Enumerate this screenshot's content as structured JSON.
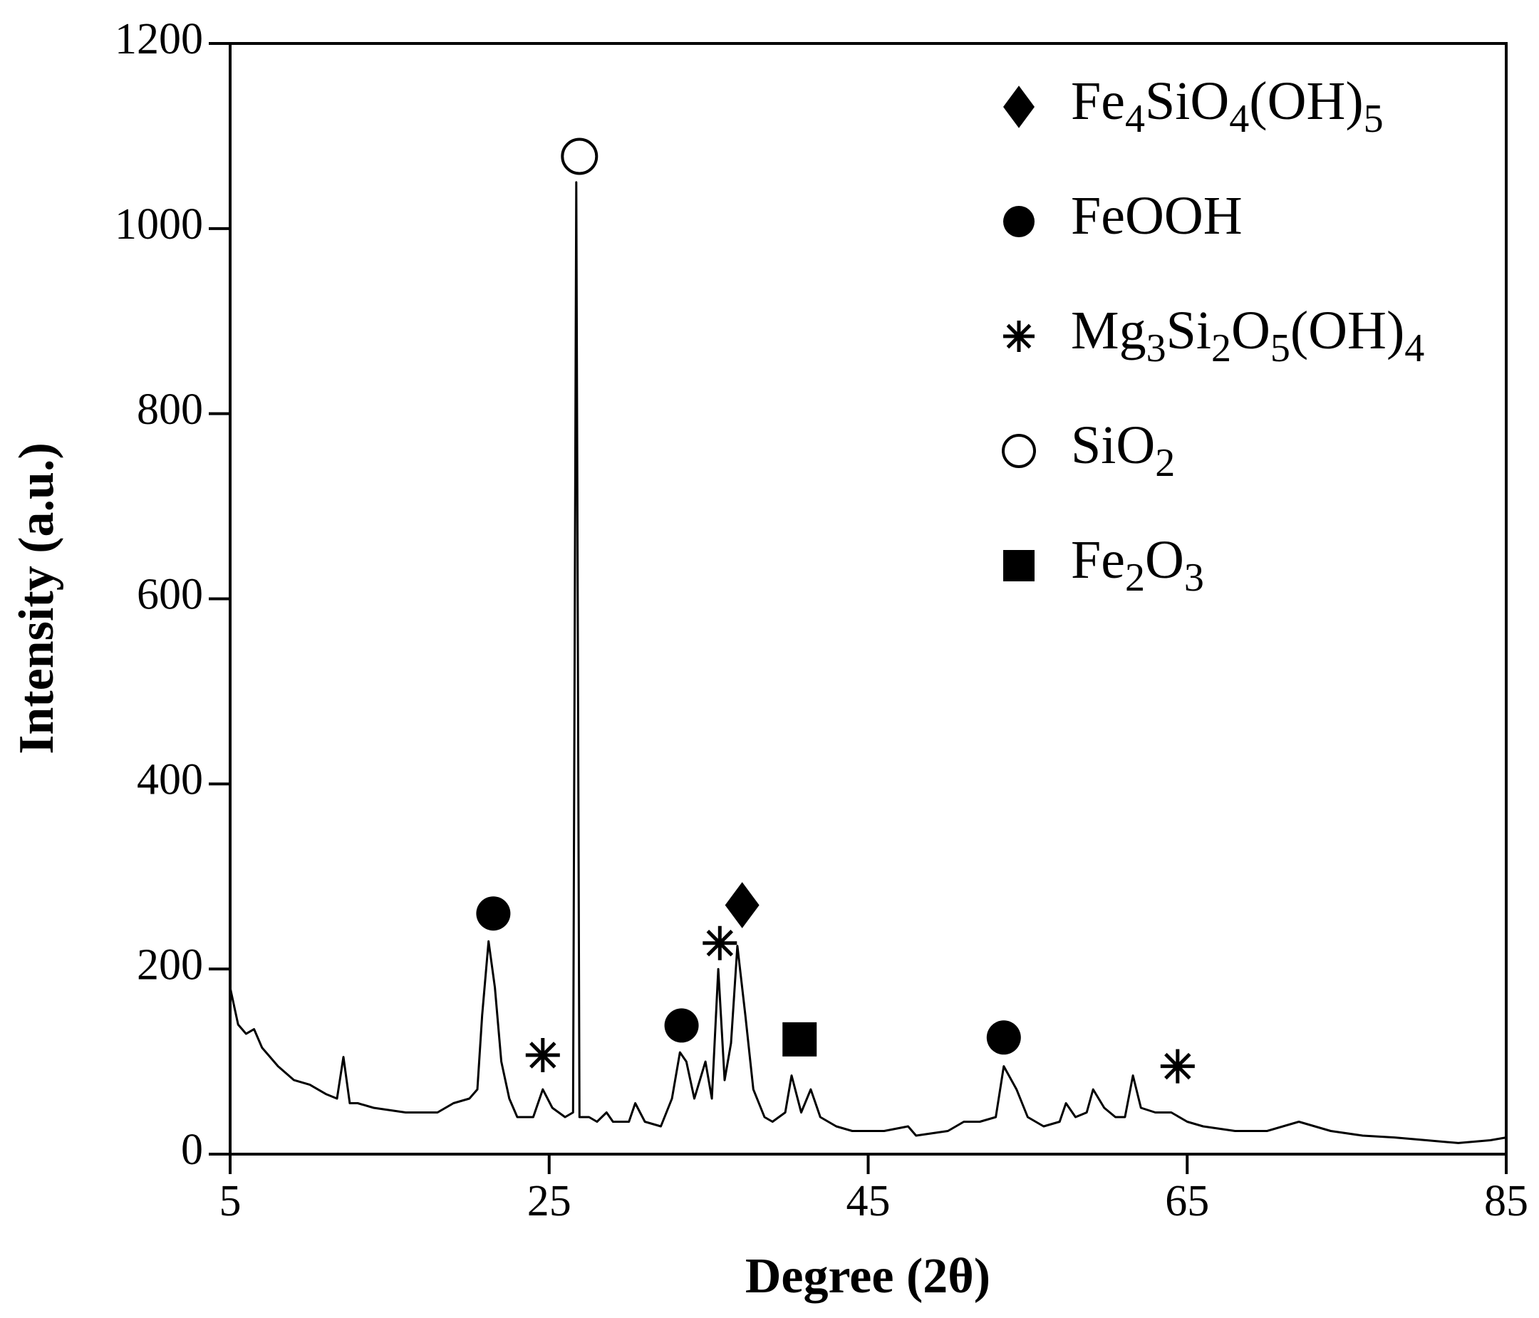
{
  "chart_data": {
    "type": "line",
    "xlabel": "Degree (2θ)",
    "ylabel": "Intensity (a.u.)",
    "color": "#000000",
    "xlim": [
      5,
      85
    ],
    "xticks": [
      5,
      25,
      45,
      65,
      85
    ],
    "ylim": [
      0,
      1200
    ],
    "yticks": [
      0,
      200,
      400,
      600,
      800,
      1000,
      1200
    ],
    "x": [
      5,
      5.5,
      6,
      6.5,
      7,
      8,
      9,
      10,
      11,
      11.7,
      12.1,
      12.5,
      13,
      14,
      16,
      18,
      19,
      20,
      20.5,
      20.8,
      21.2,
      21.6,
      22,
      22.5,
      23,
      24,
      24.6,
      25.2,
      26,
      26.5,
      26.7,
      26.9,
      27.5,
      28,
      28.6,
      29,
      30,
      30.4,
      31,
      32,
      32.7,
      33.2,
      33.6,
      34.1,
      34.8,
      35.2,
      35.6,
      36,
      36.4,
      36.8,
      37.3,
      37.8,
      38.5,
      39,
      39.8,
      40.2,
      40.8,
      41.4,
      42,
      43,
      44,
      46,
      47.5,
      48,
      50,
      51,
      52,
      53,
      53.5,
      54.3,
      55,
      56,
      57,
      57.4,
      58,
      58.7,
      59.1,
      59.8,
      60.5,
      61.1,
      61.6,
      62.1,
      63,
      64,
      65,
      66,
      68,
      70,
      72,
      74,
      76,
      78,
      80,
      82,
      84,
      85
    ],
    "values": [
      180,
      140,
      130,
      135,
      115,
      95,
      80,
      75,
      65,
      60,
      105,
      55,
      55,
      50,
      45,
      45,
      55,
      60,
      70,
      150,
      230,
      180,
      100,
      60,
      40,
      40,
      70,
      50,
      40,
      45,
      1050,
      40,
      40,
      35,
      45,
      35,
      35,
      55,
      35,
      30,
      60,
      110,
      100,
      60,
      100,
      60,
      200,
      80,
      120,
      225,
      150,
      70,
      40,
      35,
      45,
      85,
      45,
      70,
      40,
      30,
      25,
      25,
      30,
      20,
      25,
      35,
      35,
      40,
      95,
      70,
      40,
      30,
      35,
      55,
      40,
      45,
      70,
      50,
      40,
      40,
      85,
      50,
      45,
      45,
      35,
      30,
      25,
      25,
      35,
      25,
      20,
      18,
      15,
      12,
      15,
      18
    ],
    "phases": [
      {
        "name": "Fe4SiO4(OH)5",
        "marker": "diamond",
        "x": [
          37.1
        ],
        "y": [
          269
        ]
      },
      {
        "name": "FeOOH",
        "marker": "circle",
        "x": [
          21.5,
          33.3,
          53.5
        ],
        "y": [
          260,
          139,
          126
        ]
      },
      {
        "name": "Mg3Si2O5(OH)4",
        "marker": "star",
        "x": [
          24.6,
          35.7,
          64.4
        ],
        "y": [
          107,
          228,
          95
        ]
      },
      {
        "name": "SiO2",
        "marker": "open-circle",
        "x": [
          26.9
        ],
        "y": [
          1078
        ]
      },
      {
        "name": "Fe2O3",
        "marker": "square",
        "x": [
          40.7
        ],
        "y": [
          124
        ]
      }
    ]
  }
}
